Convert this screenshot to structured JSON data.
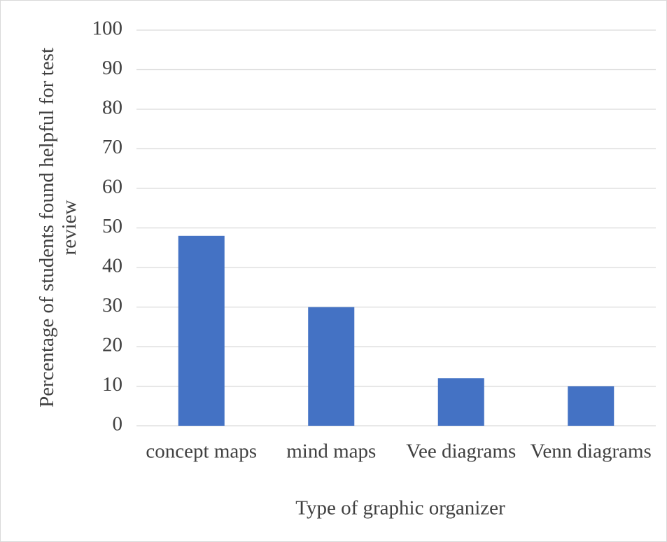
{
  "chart_data": {
    "type": "bar",
    "x_label": "Type of graphic organizer",
    "y_label": "Percentage of students found helpful for test review",
    "categories": [
      "concept maps",
      "mind maps",
      "Vee diagrams",
      "Venn diagrams"
    ],
    "values": [
      48,
      30,
      12,
      10
    ],
    "color": "#4472c4",
    "ylim": [
      0,
      100
    ],
    "yticks": [
      0,
      10,
      20,
      30,
      40,
      50,
      60,
      70,
      80,
      90,
      100
    ],
    "grid": true
  }
}
